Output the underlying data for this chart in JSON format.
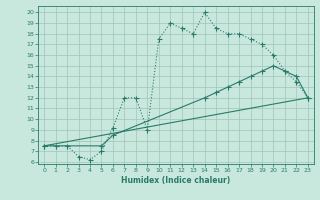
{
  "xlabel": "Humidex (Indice chaleur)",
  "bg_color": "#c8e8de",
  "line_color": "#2a7a6a",
  "grid_color": "#a0c4b8",
  "xlim": [
    -0.5,
    23.5
  ],
  "ylim": [
    5.8,
    20.6
  ],
  "xticks": [
    0,
    1,
    2,
    3,
    4,
    5,
    6,
    7,
    8,
    9,
    10,
    11,
    12,
    13,
    14,
    15,
    16,
    17,
    18,
    19,
    20,
    21,
    22,
    23
  ],
  "yticks": [
    6,
    7,
    8,
    9,
    10,
    11,
    12,
    13,
    14,
    15,
    16,
    17,
    18,
    19,
    20
  ],
  "line1_x": [
    0,
    1,
    2,
    3,
    4,
    5,
    6,
    7,
    8,
    9,
    10,
    11,
    12,
    13,
    14,
    15,
    16,
    17,
    18,
    19,
    20,
    21,
    22,
    23
  ],
  "line1_y": [
    7.5,
    7.5,
    7.5,
    6.5,
    6.2,
    7.0,
    9.2,
    12.0,
    12.0,
    9.0,
    17.5,
    19.0,
    18.5,
    18.0,
    20.0,
    18.5,
    18.0,
    18.0,
    17.5,
    17.0,
    16.0,
    14.5,
    13.5,
    12.0
  ],
  "line2_x": [
    0,
    5,
    6,
    14,
    15,
    16,
    17,
    18,
    19,
    20,
    21,
    22,
    23
  ],
  "line2_y": [
    7.5,
    7.5,
    8.5,
    12.0,
    12.5,
    13.0,
    13.5,
    14.0,
    14.5,
    15.0,
    14.5,
    14.0,
    12.0
  ],
  "line3_x": [
    0,
    23
  ],
  "line3_y": [
    7.5,
    12.0
  ]
}
